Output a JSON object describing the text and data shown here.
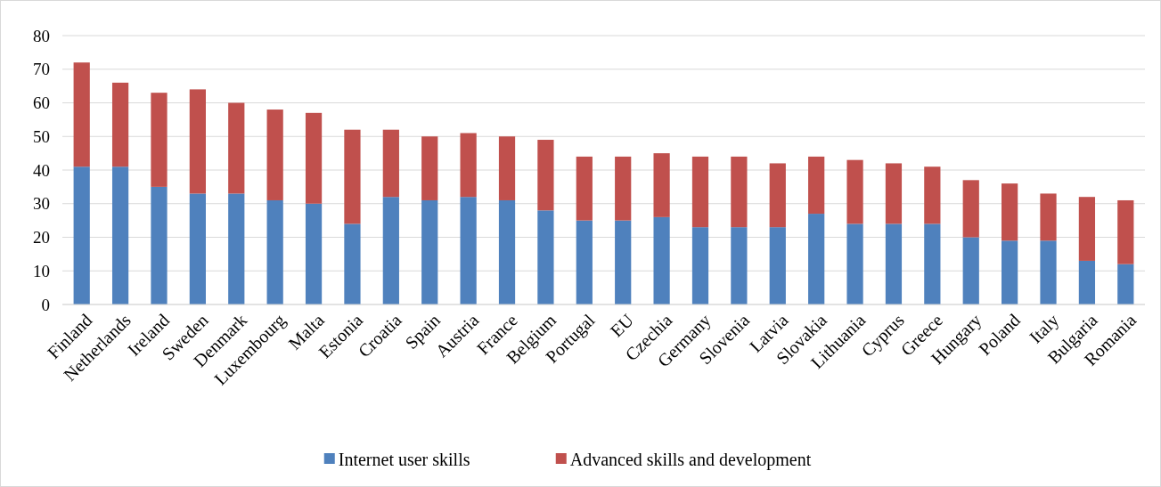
{
  "chart_data": {
    "type": "bar",
    "stacked": true,
    "categories": [
      "Finland",
      "Netherlands",
      "Ireland",
      "Sweden",
      "Denmark",
      "Luxembourg",
      "Malta",
      "Estonia",
      "Croatia",
      "Spain",
      "Austria",
      "France",
      "Belgium",
      "Portugal",
      "EU",
      "Czechia",
      "Germany",
      "Slovenia",
      "Latvia",
      "Slovakia",
      "Lithuania",
      "Cyprus",
      "Greece",
      "Hungary",
      "Poland",
      "Italy",
      "Bulgaria",
      "Romania"
    ],
    "series": [
      {
        "name": "Internet user skills",
        "color": "#4f81bd",
        "values": [
          41,
          41,
          35,
          33,
          33,
          31,
          30,
          24,
          32,
          31,
          32,
          31,
          28,
          25,
          25,
          26,
          23,
          23,
          23,
          27,
          24,
          24,
          24,
          20,
          19,
          19,
          13,
          12
        ]
      },
      {
        "name": "Advanced skills and development",
        "color": "#c0504d",
        "values": [
          31,
          25,
          28,
          31,
          27,
          27,
          27,
          28,
          20,
          19,
          19,
          19,
          21,
          19,
          19,
          19,
          21,
          21,
          19,
          17,
          19,
          18,
          17,
          17,
          17,
          14,
          19,
          19
        ]
      }
    ],
    "ylim": [
      0,
      80
    ],
    "yticks": [
      0,
      10,
      20,
      30,
      40,
      50,
      60,
      70,
      80
    ],
    "grid": "y",
    "legend": "bottom"
  }
}
